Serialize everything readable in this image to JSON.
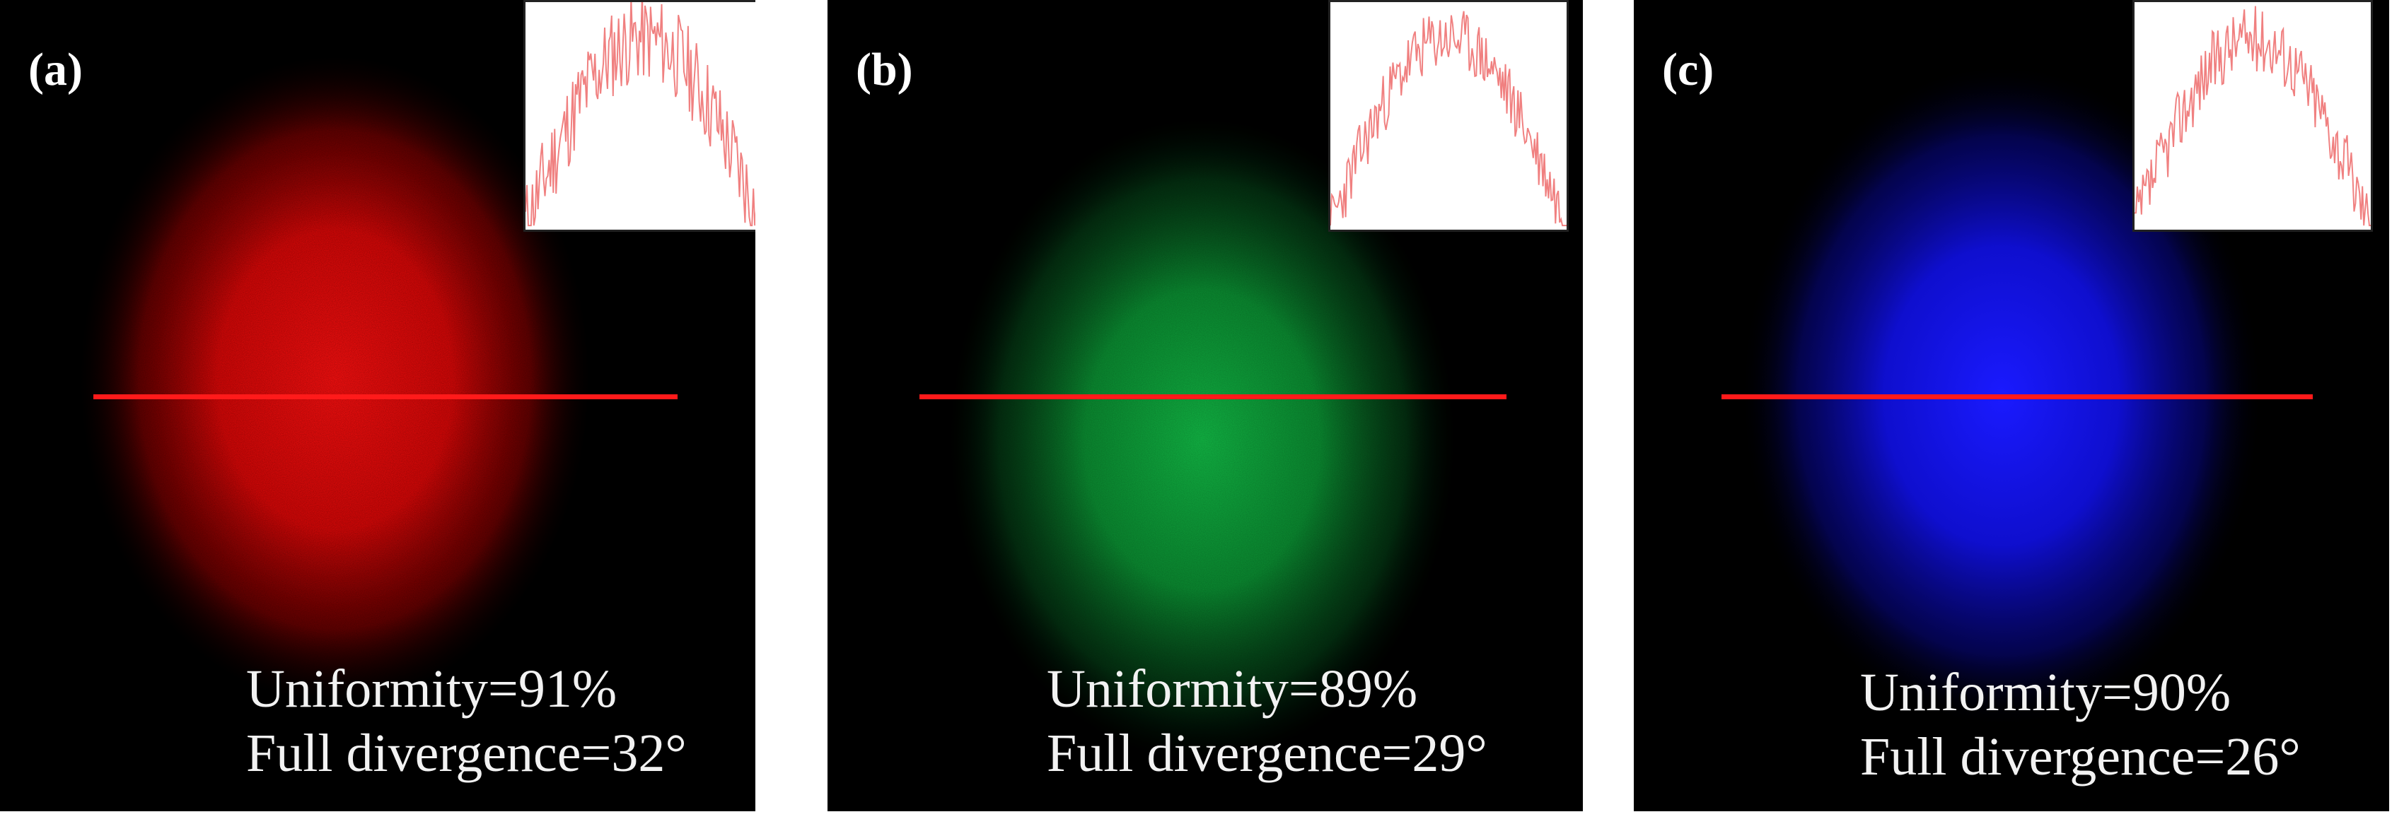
{
  "panels": [
    {
      "label": "(a)",
      "uniformity": "Uniformity=91%",
      "divergence": "Full divergence=32°",
      "color": "#ff1010",
      "mid": "#c00000"
    },
    {
      "label": "(b)",
      "uniformity": "Uniformity=89%",
      "divergence": "Full divergence=29°",
      "color": "#10b040",
      "mid": "#0a7a2a"
    },
    {
      "label": "(c)",
      "uniformity": "Uniformity=90%",
      "divergence": "Full divergence=26°",
      "color": "#1a1aff",
      "mid": "#0a0ab0"
    }
  ],
  "line_color": "#ff1a1a",
  "profile_color": "#f08080"
}
